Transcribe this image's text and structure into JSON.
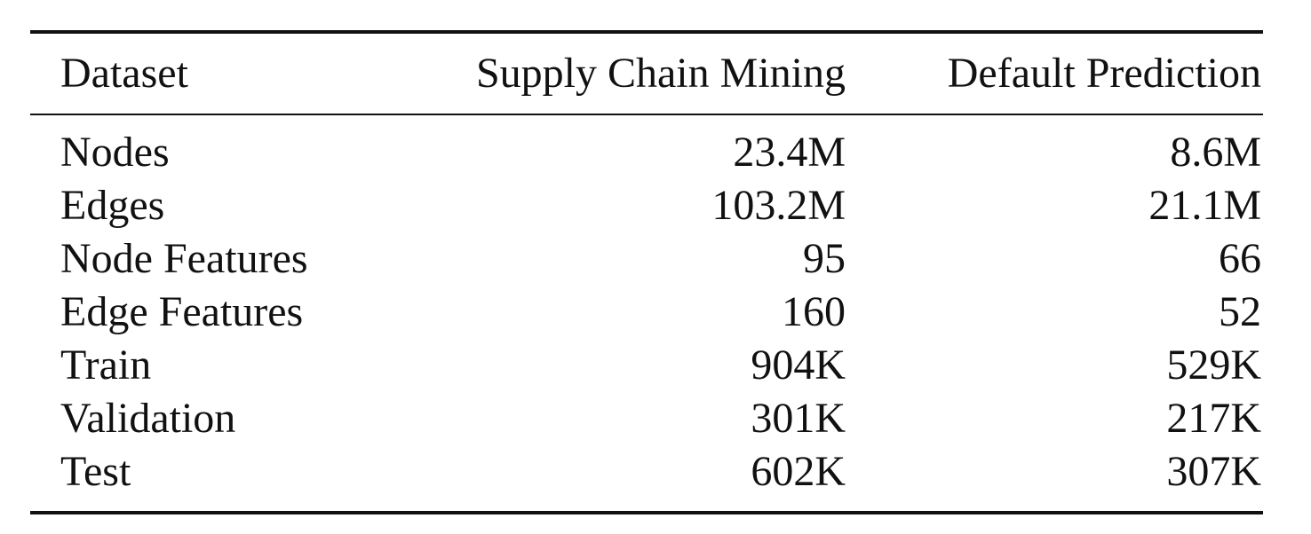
{
  "table": {
    "columns": [
      "Dataset",
      "Supply Chain Mining",
      "Default Prediction"
    ],
    "rows": [
      {
        "label": "Nodes",
        "supply_chain_mining": "23.4M",
        "default_prediction": "8.6M"
      },
      {
        "label": "Edges",
        "supply_chain_mining": "103.2M",
        "default_prediction": "21.1M"
      },
      {
        "label": "Node Features",
        "supply_chain_mining": "95",
        "default_prediction": "66"
      },
      {
        "label": "Edge Features",
        "supply_chain_mining": "160",
        "default_prediction": "52"
      },
      {
        "label": "Train",
        "supply_chain_mining": "904K",
        "default_prediction": "529K"
      },
      {
        "label": "Validation",
        "supply_chain_mining": "301K",
        "default_prediction": "217K"
      },
      {
        "label": "Test",
        "supply_chain_mining": "602K",
        "default_prediction": "307K"
      }
    ]
  }
}
